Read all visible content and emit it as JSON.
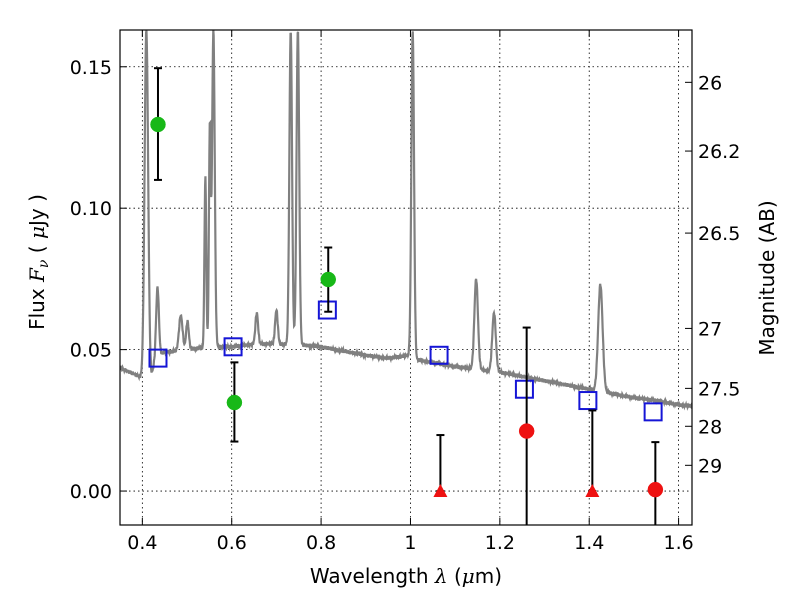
{
  "chart_data": {
    "type": "scatter",
    "xlabel": "Wavelength  λ (μm)",
    "ylabel": "Flux  F_ν  ( μJy )",
    "ylabel_right": "Magnitude (AB)",
    "xlim": [
      0.35,
      1.63
    ],
    "ylim": [
      -0.012,
      0.163
    ],
    "grid": true,
    "x_ticks": [
      0.4,
      0.6,
      0.8,
      1.0,
      1.2,
      1.4,
      1.6
    ],
    "x_tick_labels": [
      "0.4",
      "0.6",
      "0.8",
      "1",
      "1.2",
      "1.4",
      "1.6"
    ],
    "y_ticks": [
      0.0,
      0.05,
      0.1,
      0.15
    ],
    "y_tick_labels": [
      "0.00",
      "0.05",
      "0.10",
      "0.15"
    ],
    "right_ticks": [
      {
        "label": "26",
        "flux": 0.1445
      },
      {
        "label": "26.2",
        "flux": 0.1202
      },
      {
        "label": "26.5",
        "flux": 0.0912
      },
      {
        "label": "27",
        "flux": 0.0575
      },
      {
        "label": "27.5",
        "flux": 0.0363
      },
      {
        "label": "28",
        "flux": 0.0229
      },
      {
        "label": "29",
        "flux": 0.0091
      }
    ],
    "model_spectrum": {
      "color": "#808080",
      "continuum": [
        [
          0.35,
          0.0435
        ],
        [
          0.38,
          0.0415
        ],
        [
          0.4,
          0.04
        ],
        [
          0.41,
          0.0395
        ],
        [
          0.42,
          0.04
        ],
        [
          0.43,
          0.048
        ],
        [
          0.45,
          0.049
        ],
        [
          0.5,
          0.05
        ],
        [
          0.55,
          0.051
        ],
        [
          0.6,
          0.051
        ],
        [
          0.65,
          0.052
        ],
        [
          0.7,
          0.052
        ],
        [
          0.75,
          0.0518
        ],
        [
          0.8,
          0.051
        ],
        [
          0.85,
          0.0495
        ],
        [
          0.9,
          0.048
        ],
        [
          0.95,
          0.047
        ],
        [
          1.0,
          0.048
        ],
        [
          1.01,
          0.0465
        ],
        [
          1.05,
          0.0455
        ],
        [
          1.1,
          0.044
        ],
        [
          1.15,
          0.043
        ],
        [
          1.2,
          0.042
        ],
        [
          1.25,
          0.0405
        ],
        [
          1.3,
          0.039
        ],
        [
          1.35,
          0.0375
        ],
        [
          1.4,
          0.036
        ],
        [
          1.45,
          0.0345
        ],
        [
          1.5,
          0.033
        ],
        [
          1.55,
          0.032
        ],
        [
          1.6,
          0.0305
        ],
        [
          1.63,
          0.03
        ]
      ],
      "lines": [
        {
          "x": 0.409,
          "peak": 0.163,
          "w": 0.004
        },
        {
          "x": 0.434,
          "peak": 0.072,
          "w": 0.003
        },
        {
          "x": 0.486,
          "peak": 0.062,
          "w": 0.004
        },
        {
          "x": 0.501,
          "peak": 0.06,
          "w": 0.003
        },
        {
          "x": 0.541,
          "peak": 0.111,
          "w": 0.002
        },
        {
          "x": 0.551,
          "peak": 0.128,
          "w": 0.002
        },
        {
          "x": 0.559,
          "peak": 0.163,
          "w": 0.003
        },
        {
          "x": 0.656,
          "peak": 0.063,
          "w": 0.003
        },
        {
          "x": 0.7,
          "peak": 0.064,
          "w": 0.003
        },
        {
          "x": 0.732,
          "peak": 0.163,
          "w": 0.003
        },
        {
          "x": 0.748,
          "peak": 0.163,
          "w": 0.003
        },
        {
          "x": 1.005,
          "peak": 0.163,
          "w": 0.003
        },
        {
          "x": 1.147,
          "peak": 0.075,
          "w": 0.004
        },
        {
          "x": 1.187,
          "peak": 0.063,
          "w": 0.004
        },
        {
          "x": 1.425,
          "peak": 0.073,
          "w": 0.005
        }
      ]
    },
    "series": [
      {
        "marker": "open-square",
        "color": "#1515d6",
        "points": [
          {
            "x": 0.435,
            "y": 0.047
          },
          {
            "x": 0.603,
            "y": 0.051
          },
          {
            "x": 0.814,
            "y": 0.064
          },
          {
            "x": 1.064,
            "y": 0.048
          },
          {
            "x": 1.255,
            "y": 0.036
          },
          {
            "x": 1.397,
            "y": 0.032
          },
          {
            "x": 1.543,
            "y": 0.028
          }
        ]
      },
      {
        "marker": "circle",
        "color": "#18b818",
        "points": [
          {
            "x": 0.435,
            "y": 0.1296,
            "ylo": 0.11,
            "yhi": 0.1495
          },
          {
            "x": 0.606,
            "y": 0.0313,
            "ylo": 0.0175,
            "yhi": 0.0455
          },
          {
            "x": 0.816,
            "y": 0.0748,
            "ylo": 0.0634,
            "yhi": 0.0861
          }
        ]
      },
      {
        "marker": "circle",
        "color": "#ee1111",
        "points": [
          {
            "x": 1.26,
            "y": 0.0212,
            "ylo": -0.012,
            "yhi": 0.0578
          },
          {
            "x": 1.548,
            "y": 0.0005,
            "ylo": -0.012,
            "yhi": 0.0173
          }
        ]
      },
      {
        "marker": "triangle",
        "color": "#ee1111",
        "points": [
          {
            "x": 1.067,
            "y": 0.0,
            "ylo": 0.0,
            "yhi": 0.0198
          },
          {
            "x": 1.407,
            "y": 0.0,
            "ylo": 0.0,
            "yhi": 0.0285
          }
        ]
      }
    ]
  }
}
